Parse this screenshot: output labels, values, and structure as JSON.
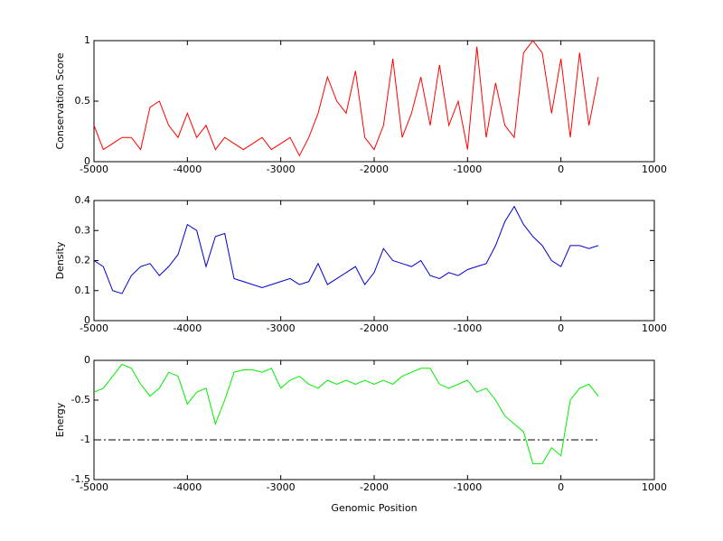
{
  "chart_data": [
    {
      "type": "line",
      "ylabel": "Conservation Score",
      "x": [
        -5000,
        -4900,
        -4800,
        -4700,
        -4600,
        -4500,
        -4400,
        -4300,
        -4200,
        -4100,
        -4000,
        -3900,
        -3800,
        -3700,
        -3600,
        -3500,
        -3400,
        -3300,
        -3200,
        -3100,
        -3000,
        -2900,
        -2800,
        -2700,
        -2600,
        -2500,
        -2400,
        -2300,
        -2200,
        -2100,
        -2000,
        -1900,
        -1800,
        -1700,
        -1600,
        -1500,
        -1400,
        -1300,
        -1200,
        -1100,
        -1000,
        -900,
        -800,
        -700,
        -600,
        -500,
        -400,
        -300,
        -200,
        -100,
        0,
        100,
        200,
        300,
        400
      ],
      "series": [
        {
          "color": "#ff0000",
          "values": [
            0.3,
            0.1,
            0.15,
            0.2,
            0.2,
            0.1,
            0.45,
            0.5,
            0.3,
            0.2,
            0.4,
            0.2,
            0.3,
            0.1,
            0.2,
            0.15,
            0.1,
            0.15,
            0.2,
            0.1,
            0.15,
            0.2,
            0.05,
            0.2,
            0.4,
            0.7,
            0.5,
            0.4,
            0.75,
            0.2,
            0.1,
            0.3,
            0.85,
            0.2,
            0.4,
            0.7,
            0.3,
            0.8,
            0.3,
            0.5,
            0.1,
            0.95,
            0.2,
            0.65,
            0.3,
            0.2,
            0.9,
            1,
            0.9,
            0.4,
            0.85,
            0.2,
            0.9,
            0.3,
            0.7
          ]
        }
      ],
      "xlim": [
        -5000,
        1000
      ],
      "xticks": [
        -5000,
        -4000,
        -3000,
        -2000,
        -1000,
        0,
        1000
      ],
      "ylim": [
        0,
        1
      ],
      "yticks": [
        0,
        0.5,
        1
      ]
    },
    {
      "type": "line",
      "ylabel": "Density",
      "x": [
        -5000,
        -4900,
        -4800,
        -4700,
        -4600,
        -4500,
        -4400,
        -4300,
        -4200,
        -4100,
        -4000,
        -3900,
        -3800,
        -3700,
        -3600,
        -3500,
        -3400,
        -3300,
        -3200,
        -3100,
        -3000,
        -2900,
        -2800,
        -2700,
        -2600,
        -2500,
        -2400,
        -2300,
        -2200,
        -2100,
        -2000,
        -1900,
        -1800,
        -1700,
        -1600,
        -1500,
        -1400,
        -1300,
        -1200,
        -1100,
        -1000,
        -900,
        -800,
        -700,
        -600,
        -500,
        -400,
        -300,
        -200,
        -100,
        0,
        100,
        200,
        300,
        400
      ],
      "series": [
        {
          "color": "#0000cc",
          "values": [
            0.2,
            0.18,
            0.1,
            0.09,
            0.15,
            0.18,
            0.19,
            0.15,
            0.18,
            0.22,
            0.32,
            0.3,
            0.18,
            0.28,
            0.29,
            0.14,
            0.13,
            0.12,
            0.11,
            0.12,
            0.13,
            0.14,
            0.12,
            0.13,
            0.19,
            0.12,
            0.14,
            0.16,
            0.18,
            0.12,
            0.16,
            0.24,
            0.2,
            0.19,
            0.18,
            0.2,
            0.15,
            0.14,
            0.16,
            0.15,
            0.17,
            0.18,
            0.19,
            0.25,
            0.33,
            0.38,
            0.32,
            0.28,
            0.25,
            0.2,
            0.18,
            0.25,
            0.25,
            0.24,
            0.25
          ]
        }
      ],
      "xlim": [
        -5000,
        1000
      ],
      "xticks": [
        -5000,
        -4000,
        -3000,
        -2000,
        -1000,
        0,
        1000
      ],
      "ylim": [
        0,
        0.4
      ],
      "yticks": [
        0,
        0.1,
        0.2,
        0.3,
        0.4
      ]
    },
    {
      "type": "line",
      "ylabel": "Energy",
      "xlabel": "Genomic Position",
      "x": [
        -5000,
        -4900,
        -4800,
        -4700,
        -4600,
        -4500,
        -4400,
        -4300,
        -4200,
        -4100,
        -4000,
        -3900,
        -3800,
        -3700,
        -3600,
        -3500,
        -3400,
        -3300,
        -3200,
        -3100,
        -3000,
        -2900,
        -2800,
        -2700,
        -2600,
        -2500,
        -2400,
        -2300,
        -2200,
        -2100,
        -2000,
        -1900,
        -1800,
        -1700,
        -1600,
        -1500,
        -1400,
        -1300,
        -1200,
        -1100,
        -1000,
        -900,
        -800,
        -700,
        -600,
        -500,
        -400,
        -300,
        -200,
        -100,
        0,
        100,
        200,
        300,
        400
      ],
      "series": [
        {
          "color": "#00ee00",
          "values": [
            -0.4,
            -0.35,
            -0.2,
            -0.05,
            -0.1,
            -0.3,
            -0.45,
            -0.35,
            -0.15,
            -0.2,
            -0.55,
            -0.4,
            -0.35,
            -0.8,
            -0.5,
            -0.15,
            -0.12,
            -0.12,
            -0.15,
            -0.1,
            -0.35,
            -0.25,
            -0.2,
            -0.3,
            -0.35,
            -0.25,
            -0.3,
            -0.25,
            -0.3,
            -0.25,
            -0.3,
            -0.25,
            -0.3,
            -0.2,
            -0.15,
            -0.1,
            -0.1,
            -0.3,
            -0.35,
            -0.3,
            -0.25,
            -0.4,
            -0.35,
            -0.5,
            -0.7,
            -0.8,
            -0.9,
            -1.3,
            -1.3,
            -1.1,
            -1.2,
            -0.5,
            -0.35,
            -0.3,
            -0.45
          ]
        }
      ],
      "hline": {
        "value": -1,
        "x": [
          -5000,
          400
        ],
        "color": "#000000"
      },
      "xlim": [
        -5000,
        1000
      ],
      "xticks": [
        -5000,
        -4000,
        -3000,
        -2000,
        -1000,
        0,
        1000
      ],
      "ylim": [
        -1.5,
        0
      ],
      "yticks": [
        -1.5,
        -1,
        -0.5,
        0
      ]
    }
  ]
}
